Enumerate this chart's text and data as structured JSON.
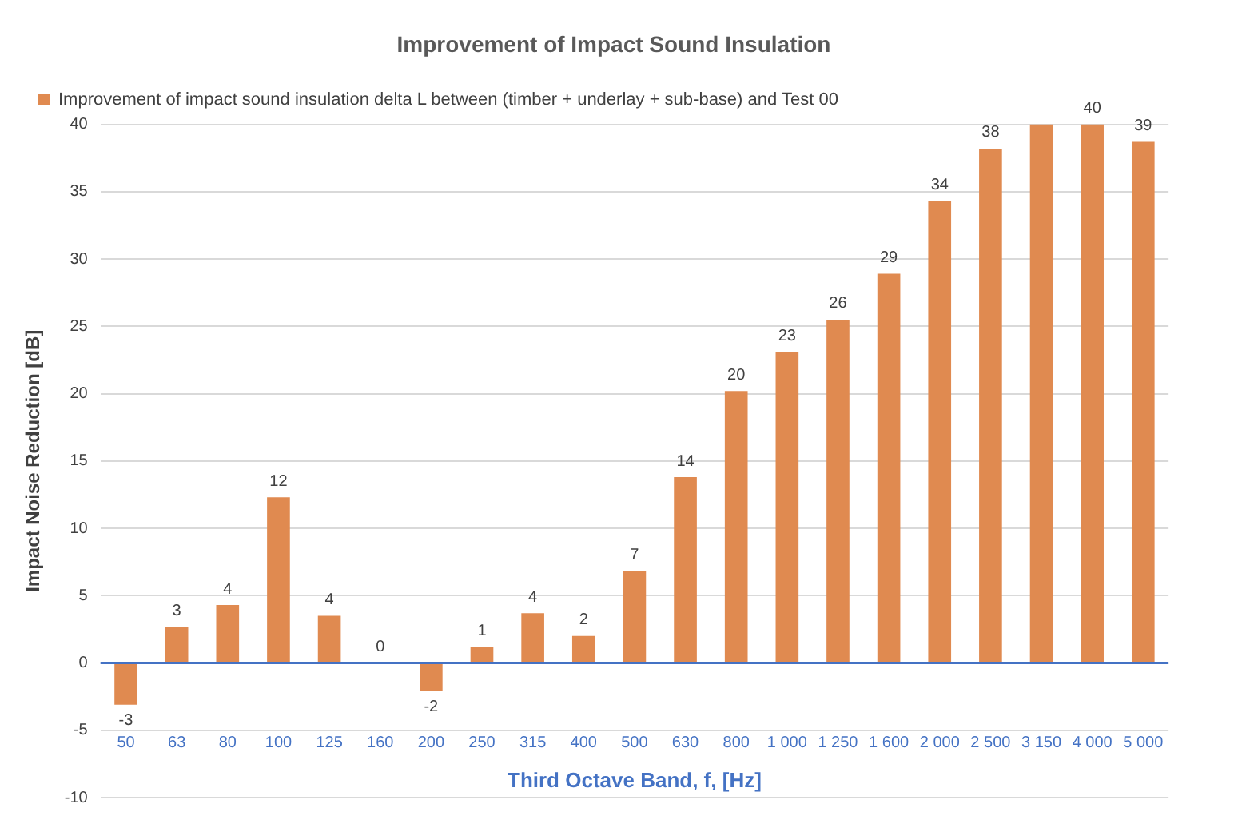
{
  "chart_data": {
    "type": "bar",
    "title": "Improvement of Impact Sound Insulation",
    "xlabel": "Third Octave Band, f, [Hz]",
    "ylabel": "Impact Noise Reduction [dB]",
    "categories": [
      "50",
      "63",
      "80",
      "100",
      "125",
      "160",
      "200",
      "250",
      "315",
      "400",
      "500",
      "630",
      "800",
      "1 000",
      "1 250",
      "1 600",
      "2 000",
      "2 500",
      "3 150",
      "4 000",
      "5 000"
    ],
    "series": [
      {
        "name": "Improvement of impact sound insulation delta L between (timber + underlay + sub-base) and Test 00",
        "color": "#e08a50",
        "values": [
          -3.1,
          2.7,
          4.3,
          12.3,
          3.5,
          0,
          -2.1,
          1.2,
          3.7,
          2.0,
          6.8,
          13.8,
          20.2,
          23.1,
          25.5,
          28.9,
          34.3,
          38.2,
          40,
          40,
          38.7
        ],
        "value_labels": [
          "-3",
          "3",
          "4",
          "12",
          "4",
          "0",
          "-2",
          "1",
          "4",
          "2",
          "7",
          "14",
          "20",
          "23",
          "26",
          "29",
          "34",
          "38",
          null,
          "40",
          "39"
        ]
      }
    ],
    "ref_lines": [
      {
        "axis": "y",
        "value": 0,
        "color": "#4472c4"
      }
    ],
    "ylim": [
      -10,
      40
    ],
    "yticks": [
      -10,
      -5,
      0,
      5,
      10,
      15,
      20,
      25,
      30,
      35,
      40
    ],
    "grid": "y",
    "legend": "top left"
  }
}
